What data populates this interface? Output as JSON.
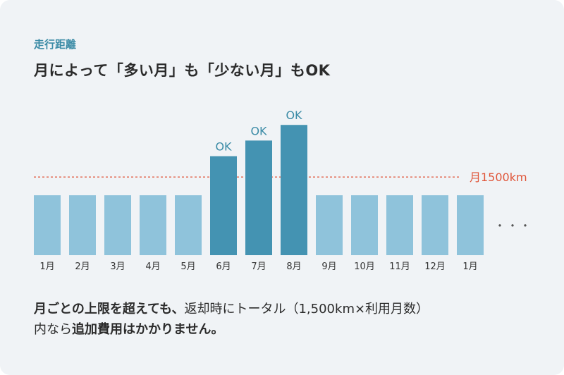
{
  "header": {
    "eyebrow": "走行距離",
    "title": "月によって「多い月」も「少ない月」もOK"
  },
  "chart_data": {
    "type": "bar",
    "categories": [
      "1月",
      "2月",
      "3月",
      "4月",
      "5月",
      "6月",
      "7月",
      "8月",
      "9月",
      "10月",
      "11月",
      "12月",
      "1月"
    ],
    "values": [
      1150,
      1150,
      1150,
      1150,
      1150,
      1900,
      2200,
      2500,
      1150,
      1150,
      1150,
      1150,
      1150
    ],
    "highlighted": [
      false,
      false,
      false,
      false,
      false,
      true,
      true,
      true,
      false,
      false,
      false,
      false,
      false
    ],
    "data_labels": [
      "",
      "",
      "",
      "",
      "",
      "OK",
      "OK",
      "OK",
      "",
      "",
      "",
      "",
      ""
    ],
    "reference_line": {
      "value": 1500,
      "label": "月1500km"
    },
    "continuation_marker": "・・・",
    "ylim": [
      0,
      2700
    ],
    "colors": {
      "bar": "#8fc3db",
      "bar_highlight": "#4493b2",
      "label_ok": "#3b8ba6",
      "reference": "#e0563a"
    },
    "title": "",
    "xlabel": "",
    "ylabel": ""
  },
  "description": {
    "part1": "月ごとの上限を超えても、",
    "part2": "返却時にトータル（1,500km×利用月数）",
    "part3": "内なら",
    "part4": "追加費用はかかりません。"
  }
}
